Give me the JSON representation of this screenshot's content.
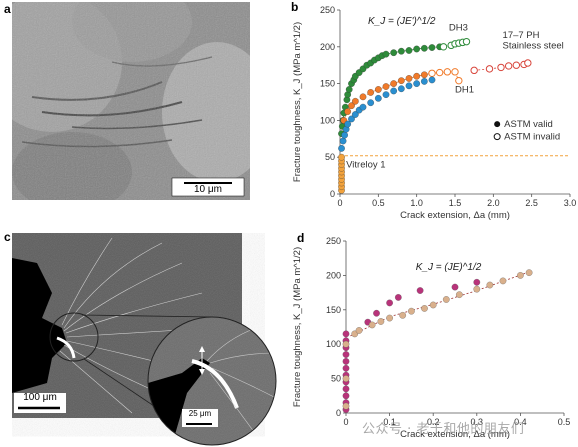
{
  "panels": {
    "a": {
      "letter": "a",
      "scale_bar": "10 μm"
    },
    "b": {
      "letter": "b"
    },
    "c": {
      "letter": "c",
      "scale_bar": "100 μm",
      "inset_scale_bar": "25 μm"
    },
    "d": {
      "letter": "d"
    }
  },
  "watermark": "公众号 · 老千和他的朋友们",
  "colors": {
    "dh3_green": "#2e8b3a",
    "dh1_orange": "#f07a2a",
    "blue": "#2a8fd0",
    "vitreloy_orange": "#f2a23c",
    "stainless_red": "#d8443a",
    "magenta": "#b8337a",
    "tan": "#d9b08c",
    "threshold_line": "#f2a23c"
  },
  "chart_data": [
    {
      "id": "b",
      "type": "scatter",
      "xlabel": "Crack extension, Δa (mm)",
      "ylabel": "Fracture toughness, K_J (MPa m^1/2)",
      "xlim": [
        0,
        3.0
      ],
      "ylim": [
        0,
        250
      ],
      "xticks": [
        "0",
        "0.5",
        "1.0",
        "1.5",
        "2.0",
        "2.5",
        "3.0"
      ],
      "yticks": [
        "0",
        "50",
        "100",
        "150",
        "200",
        "250"
      ],
      "formula": "K_J = (JE')^1/2",
      "threshold": 52,
      "annotations": [
        "DH3",
        "DH1",
        "17–7 PH",
        "Stainless steel",
        "Vitreloy 1"
      ],
      "legend": [
        "ASTM valid",
        "ASTM invalid"
      ],
      "series": [
        {
          "name": "DH3",
          "color": "#2e8b3a",
          "valid": [
            [
              0.02,
              82
            ],
            [
              0.03,
              92
            ],
            [
              0.04,
              100
            ],
            [
              0.05,
              110
            ],
            [
              0.07,
              118
            ],
            [
              0.09,
              128
            ],
            [
              0.1,
              135
            ],
            [
              0.12,
              142
            ],
            [
              0.15,
              150
            ],
            [
              0.18,
              155
            ],
            [
              0.2,
              160
            ],
            [
              0.25,
              165
            ],
            [
              0.3,
              170
            ],
            [
              0.35,
              175
            ],
            [
              0.4,
              178
            ],
            [
              0.45,
              182
            ],
            [
              0.5,
              185
            ],
            [
              0.55,
              188
            ],
            [
              0.6,
              190
            ],
            [
              0.7,
              192
            ],
            [
              0.8,
              194
            ],
            [
              0.9,
              195
            ],
            [
              1.0,
              197
            ],
            [
              1.1,
              198
            ],
            [
              1.2,
              199
            ],
            [
              1.3,
              200
            ]
          ],
          "invalid": [
            [
              1.35,
              200
            ],
            [
              1.45,
              202
            ],
            [
              1.5,
              204
            ],
            [
              1.55,
              205
            ],
            [
              1.6,
              206
            ],
            [
              1.65,
              207
            ]
          ]
        },
        {
          "name": "DH1",
          "color": "#f07a2a",
          "valid": [
            [
              0.05,
              100
            ],
            [
              0.1,
              112
            ],
            [
              0.15,
              120
            ],
            [
              0.2,
              126
            ],
            [
              0.3,
              132
            ],
            [
              0.4,
              138
            ],
            [
              0.5,
              142
            ],
            [
              0.6,
              146
            ],
            [
              0.7,
              150
            ],
            [
              0.8,
              154
            ],
            [
              0.9,
              157
            ],
            [
              1.0,
              160
            ],
            [
              1.1,
              162
            ]
          ],
          "invalid": [
            [
              1.2,
              164
            ],
            [
              1.3,
              165
            ],
            [
              1.4,
              166
            ],
            [
              1.5,
              166
            ],
            [
              1.55,
              154
            ]
          ]
        },
        {
          "name": "17–7 PH Stainless steel",
          "color": "#d8443a",
          "valid": [],
          "invalid": [
            [
              1.75,
              168
            ],
            [
              1.95,
              170
            ],
            [
              2.1,
              172
            ],
            [
              2.2,
              174
            ],
            [
              2.3,
              175
            ],
            [
              2.4,
              176
            ],
            [
              2.45,
              178
            ]
          ]
        },
        {
          "name": "blue",
          "color": "#2a8fd0",
          "valid": [
            [
              0.02,
              62
            ],
            [
              0.04,
              72
            ],
            [
              0.06,
              80
            ],
            [
              0.08,
              88
            ],
            [
              0.1,
              95
            ],
            [
              0.15,
              102
            ],
            [
              0.2,
              108
            ],
            [
              0.25,
              114
            ],
            [
              0.3,
              118
            ],
            [
              0.4,
              124
            ],
            [
              0.5,
              130
            ],
            [
              0.6,
              135
            ],
            [
              0.7,
              140
            ],
            [
              0.8,
              143
            ],
            [
              0.9,
              147
            ],
            [
              1.0,
              150
            ],
            [
              1.1,
              153
            ],
            [
              1.2,
              155
            ]
          ],
          "invalid": []
        },
        {
          "name": "Vitreloy 1",
          "color": "#f2a23c",
          "valid": [
            [
              0.02,
              5
            ],
            [
              0.02,
              10
            ],
            [
              0.02,
              15
            ],
            [
              0.02,
              20
            ],
            [
              0.02,
              25
            ],
            [
              0.02,
              30
            ],
            [
              0.02,
              35
            ],
            [
              0.02,
              40
            ],
            [
              0.02,
              45
            ],
            [
              0.02,
              50
            ]
          ],
          "invalid": []
        }
      ]
    },
    {
      "id": "d",
      "type": "scatter",
      "xlabel": "Crack extension, Δa (mm)",
      "ylabel": "Fracture toughness, K_J (MPa m^1/2)",
      "xlim": [
        0,
        0.5
      ],
      "ylim": [
        0,
        250
      ],
      "xticks": [
        "0",
        "0.1",
        "0.2",
        "0.3",
        "0.4",
        "0.5"
      ],
      "yticks": [
        "0",
        "50",
        "100",
        "150",
        "200",
        "250"
      ],
      "formula": "K_J = (JE)^1/2",
      "series": [
        {
          "name": "magenta",
          "color": "#b8337a",
          "points": [
            [
              0,
              5
            ],
            [
              0,
              15
            ],
            [
              0,
              25
            ],
            [
              0,
              35
            ],
            [
              0,
              45
            ],
            [
              0,
              55
            ],
            [
              0,
              65
            ],
            [
              0,
              75
            ],
            [
              0,
              85
            ],
            [
              0,
              95
            ],
            [
              0,
              105
            ],
            [
              0,
              115
            ],
            [
              0.05,
              132
            ],
            [
              0.07,
              145
            ],
            [
              0.1,
              160
            ],
            [
              0.12,
              168
            ],
            [
              0.17,
              178
            ],
            [
              0.25,
              183
            ],
            [
              0.3,
              190
            ]
          ]
        },
        {
          "name": "tan",
          "color": "#d9b08c",
          "points": [
            [
              0,
              10
            ],
            [
              0,
              50
            ],
            [
              0,
              100
            ],
            [
              0.02,
              115
            ],
            [
              0.03,
              120
            ],
            [
              0.06,
              128
            ],
            [
              0.08,
              133
            ],
            [
              0.1,
              138
            ],
            [
              0.13,
              142
            ],
            [
              0.15,
              148
            ],
            [
              0.18,
              152
            ],
            [
              0.2,
              157
            ],
            [
              0.23,
              165
            ],
            [
              0.26,
              172
            ],
            [
              0.3,
              180
            ],
            [
              0.33,
              186
            ],
            [
              0.36,
              192
            ],
            [
              0.4,
              200
            ],
            [
              0.42,
              204
            ]
          ]
        }
      ]
    }
  ]
}
